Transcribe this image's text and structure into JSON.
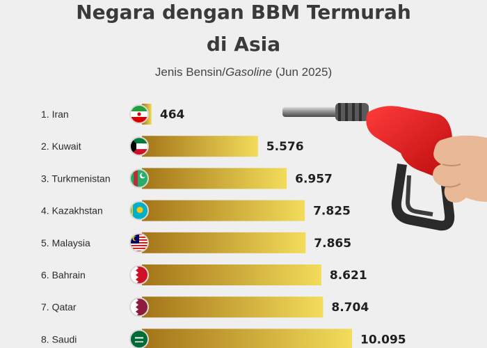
{
  "header": {
    "title_line1": "Negara dengan BBM Termurah",
    "title_line2": "di Asia",
    "subtitle_prefix": "Jenis Bensin/",
    "subtitle_italic": "Gasoline",
    "subtitle_suffix": " (Jun 2025)"
  },
  "chart_data": {
    "type": "bar",
    "orientation": "horizontal",
    "categories": [
      "1. Iran",
      "2. Kuwait",
      "3. Turkmenistan",
      "4. Kazakhstan",
      "5. Malaysia",
      "6. Bahrain",
      "7. Qatar",
      "8. Saudi"
    ],
    "values": [
      464,
      5576,
      6957,
      7825,
      7865,
      8621,
      8704,
      10095
    ],
    "value_labels": [
      "464",
      "5.576",
      "6.957",
      "7.825",
      "7.865",
      "8.621",
      "8.704",
      "10.095"
    ],
    "flags": [
      "iran-flag",
      "kuwait-flag",
      "turkmenistan-flag",
      "kazakhstan-flag",
      "malaysia-flag",
      "bahrain-flag",
      "qatar-flag",
      "saudi-flag"
    ],
    "bar_color_start": "#a37418",
    "bar_color_end": "#f2dc5a",
    "grid": false
  },
  "illustration": "fuel-pump-nozzle-in-hand"
}
